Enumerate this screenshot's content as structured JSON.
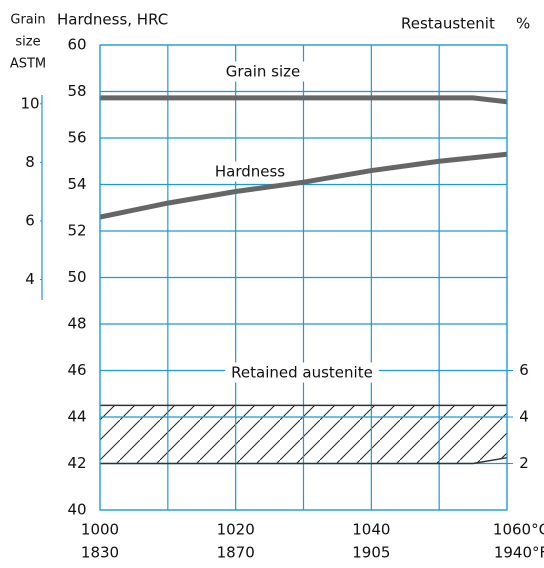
{
  "chart_data": {
    "type": "line",
    "y_label": "Hardness, HRC",
    "y2_label": "Restaustenit",
    "y2_unit": "%",
    "y3_label": [
      "Grain",
      "size",
      "ASTM"
    ],
    "annotations": [
      "Grain size",
      "Hardness",
      "Retained austenite"
    ],
    "x": [
      1000,
      1010,
      1020,
      1030,
      1040,
      1050,
      1055,
      1060
    ],
    "xlim": [
      1000,
      1060
    ],
    "xticks": [
      1000,
      1020,
      1040,
      {
        "value": 1060,
        "label": "1060°C"
      }
    ],
    "xgrid": [
      1000,
      1010,
      1020,
      1030,
      1040,
      1050,
      1060
    ],
    "x2ticks": [
      {
        "value": 1000,
        "label": "1830"
      },
      {
        "value": 1020,
        "label": "1870"
      },
      {
        "value": 1040,
        "label": "1905"
      },
      {
        "value": 1060,
        "label": "1940°F"
      }
    ],
    "ylim": [
      40,
      60
    ],
    "yticks": [
      40,
      42,
      44,
      46,
      48,
      50,
      52,
      54,
      56,
      58,
      60
    ],
    "y2lim": [
      0,
      20
    ],
    "y2ticks": [
      2,
      4,
      6
    ],
    "y3lim": [
      3.3,
      10.3
    ],
    "y3ticks": [
      4,
      6,
      8,
      10
    ],
    "grid": true,
    "grid_color": "#1a9ad6",
    "series": [
      {
        "name": "Grain size",
        "axis": "y3",
        "color": "#666666",
        "values": [
          10.2,
          10.2,
          10.2,
          10.2,
          10.2,
          10.2,
          10.2,
          10.07
        ]
      },
      {
        "name": "Hardness",
        "axis": "y",
        "color": "#666666",
        "values": [
          52.6,
          53.2,
          53.7,
          54.1,
          54.6,
          55.0,
          55.15,
          55.3
        ]
      },
      {
        "name": "Retained austenite",
        "axis": "y2",
        "color": "#333333",
        "upper": [
          4.5,
          4.5,
          4.5,
          4.5,
          4.5,
          4.5,
          4.5,
          4.5
        ],
        "lower": [
          2,
          2,
          2,
          2,
          2,
          2,
          2,
          2.25
        ]
      }
    ]
  }
}
